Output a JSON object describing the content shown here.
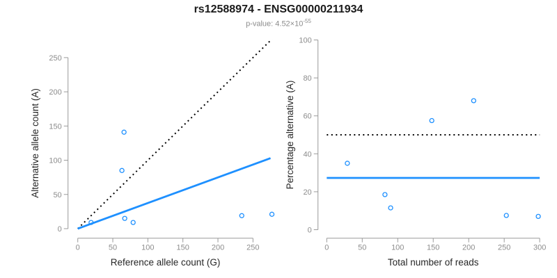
{
  "header": {
    "title": "rs12588974 - ENSG00000211934",
    "subtitle_prefix": "p-value: 4.52×10",
    "subtitle_exponent": "-55"
  },
  "colors": {
    "point_blue": "#1E90FF",
    "fit_line_blue": "#1E90FF",
    "reference_line_black": "#000000",
    "axis_gray": "#999999",
    "tick_label_gray": "#8c8c8c",
    "axis_title_dark": "#262626"
  },
  "chart_data": [
    {
      "type": "scatter",
      "panel": "left",
      "title": "",
      "xlabel": "Reference allele count (G)",
      "ylabel": "Alternative allele count (A)",
      "xlim": [
        0,
        277
      ],
      "ylim": [
        0,
        278
      ],
      "xticks": [
        0,
        50,
        100,
        150,
        200,
        250
      ],
      "yticks": [
        0,
        50,
        100,
        150,
        200,
        250
      ],
      "grid": false,
      "legend": "none",
      "points": [
        [
          19,
          9
        ],
        [
          67,
          15
        ],
        [
          79,
          9
        ],
        [
          63,
          85
        ],
        [
          66,
          141
        ],
        [
          234,
          19
        ],
        [
          277,
          21
        ]
      ],
      "lines": [
        {
          "name": "identity-reference",
          "style": "dotted",
          "color_key": "reference_line_black",
          "from": [
            0,
            0
          ],
          "to": [
            277,
            277
          ]
        },
        {
          "name": "allelic-fit",
          "style": "solid",
          "color_key": "fit_line_blue",
          "from": [
            0,
            0
          ],
          "to": [
            275,
            103
          ]
        }
      ]
    },
    {
      "type": "scatter",
      "panel": "right",
      "title": "",
      "xlabel": "Total number of reads",
      "ylabel": "Percentage alternative (A)",
      "xlim": [
        0,
        300
      ],
      "ylim": [
        0,
        100
      ],
      "xticks": [
        0,
        50,
        100,
        150,
        200,
        250,
        300
      ],
      "yticks": [
        0,
        20,
        40,
        60,
        80,
        100
      ],
      "grid": false,
      "legend": "none",
      "points": [
        [
          29,
          35
        ],
        [
          82,
          18.5
        ],
        [
          90,
          11.5
        ],
        [
          148,
          57.5
        ],
        [
          207,
          68
        ],
        [
          253,
          7.5
        ],
        [
          298,
          7
        ]
      ],
      "lines": [
        {
          "name": "expected-50-percent",
          "style": "dotted",
          "color_key": "reference_line_black",
          "y": 50
        },
        {
          "name": "mean-percentage",
          "style": "solid",
          "color_key": "fit_line_blue",
          "y": 27.3
        }
      ]
    }
  ]
}
